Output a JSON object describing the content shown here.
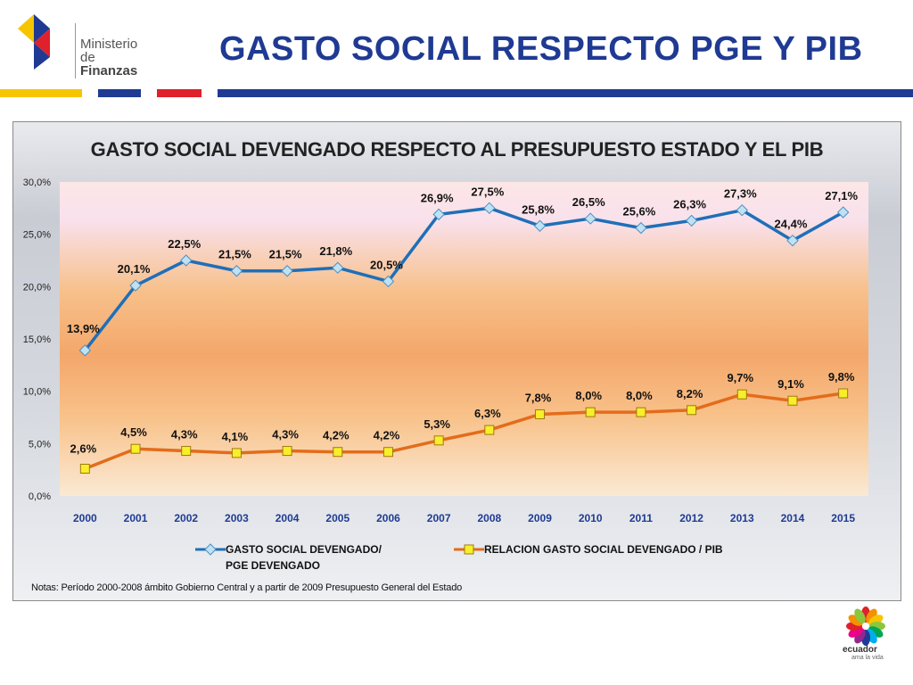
{
  "header": {
    "logo_line1": "Ministerio",
    "logo_line2_prefix": "de ",
    "logo_line2_bold": "Finanzas",
    "title": "GASTO SOCIAL RESPECTO PGE Y PIB"
  },
  "colors": {
    "title_blue": "#1f3a93",
    "stripe_yellow": "#f6c500",
    "stripe_blue": "#1f3a93",
    "stripe_red": "#e0202a",
    "series1": "#1f6fb8",
    "series2": "#e36c1b"
  },
  "chart_data": {
    "type": "line",
    "title": "GASTO SOCIAL DEVENGADO RESPECTO AL PRESUPUESTO ESTADO Y EL PIB",
    "categories": [
      "2000",
      "2001",
      "2002",
      "2003",
      "2004",
      "2005",
      "2006",
      "2007",
      "2008",
      "2009",
      "2010",
      "2011",
      "2012",
      "2013",
      "2014",
      "2015"
    ],
    "ylim": [
      0,
      30
    ],
    "yticks": [
      "0,0%",
      "5,0%",
      "10,0%",
      "15,0%",
      "20,0%",
      "25,0%",
      "30,0%"
    ],
    "series": [
      {
        "name_line1": "GASTO  SOCIAL DEVENGADO/",
        "name_line2": "PGE DEVENGADO",
        "marker": "diamond",
        "values": [
          13.9,
          20.1,
          22.5,
          21.5,
          21.5,
          21.8,
          20.5,
          26.9,
          27.5,
          25.8,
          26.5,
          25.6,
          26.3,
          27.3,
          24.4,
          27.1
        ],
        "labels": [
          "13,9%",
          "20,1%",
          "22,5%",
          "21,5%",
          "21,5%",
          "21,8%",
          "20,5%",
          "26,9%",
          "27,5%",
          "25,8%",
          "26,5%",
          "25,6%",
          "26,3%",
          "27,3%",
          "24,4%",
          "27,1%"
        ]
      },
      {
        "name_line1": "RELACION GASTO  SOCIAL DEVENGADO  / PIB",
        "name_line2": "",
        "marker": "square",
        "values": [
          2.6,
          4.5,
          4.3,
          4.1,
          4.3,
          4.2,
          4.2,
          5.3,
          6.3,
          7.8,
          8.0,
          8.0,
          8.2,
          9.7,
          9.1,
          9.8
        ],
        "labels": [
          "2,6%",
          "4,5%",
          "4,3%",
          "4,1%",
          "4,3%",
          "4,2%",
          "4,2%",
          "5,3%",
          "6,3%",
          "7,8%",
          "8,0%",
          "8,0%",
          "8,2%",
          "9,7%",
          "9,1%",
          "9,8%"
        ]
      }
    ],
    "legend": "bottom",
    "grid": false,
    "note": "Notas: Período 2000-2008 ámbito Gobierno Central y a partir de 2009 Presupuesto General del Estado"
  },
  "footer": {
    "brand": "ecuador",
    "tagline": "ama la vida"
  }
}
